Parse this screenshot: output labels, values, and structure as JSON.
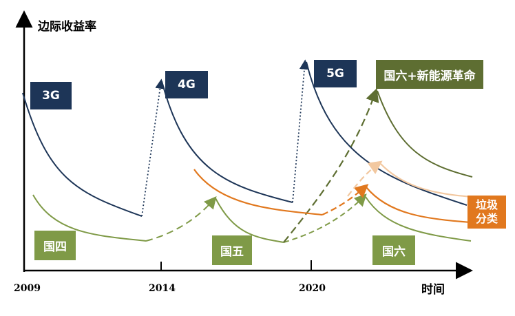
{
  "axis": {
    "y_title": "边际收益率",
    "x_title": "时间",
    "years": [
      "2009",
      "2014",
      "2020"
    ]
  },
  "labels": {
    "g3": "3G",
    "g4": "4G",
    "g5": "5G",
    "guo4": "国四",
    "guo5": "国五",
    "guo6": "国六",
    "guo6_plus": "国六+新能源革命",
    "garbage_line1": "垃圾",
    "garbage_line2": "分类"
  },
  "colors": {
    "navy": "#1d3557",
    "green": "#7f9a47",
    "olive": "#5e6e32",
    "orange": "#e1781e",
    "peach": "#f2c8a0"
  }
}
